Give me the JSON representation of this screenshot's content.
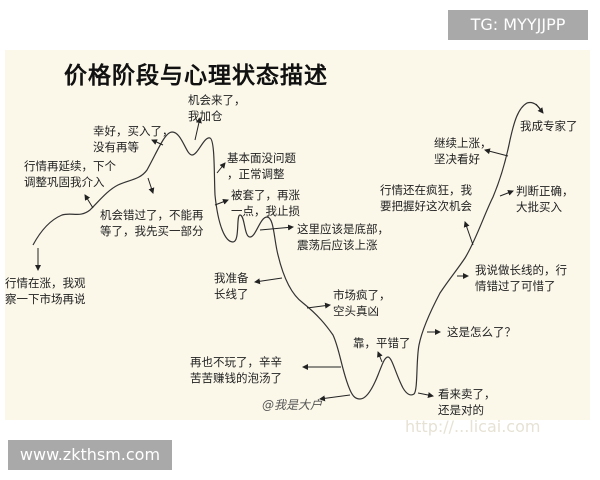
{
  "title": "价格阶段与心理状态描述",
  "badges": {
    "tg": "TG: MYYJJPP",
    "site": "www.zkthsm.com"
  },
  "watermark": "http://...licai.com",
  "watermark_signature": "@我是大户",
  "notes": [
    "行情在涨，我观\n察一下市场再说",
    "行情再延续，下个\n调整巩固我介入",
    "机会错过了，不能再\n等了，我先买一部分",
    "幸好，买入了，\n没有再等",
    "机会来了，\n我加仓",
    "基本面没问题\n，正常调整",
    "被套了，再涨\n一点，我止损",
    "这里应该是底部，\n震荡后应该上涨",
    "我准备\n长线了",
    "市场疯了，\n空头真凶",
    "再也不玩了，辛辛\n苦苦赚钱的泡汤了",
    "靠，平错了",
    "看来卖了，\n还是对的",
    "这是怎么了？",
    "我说做长线的，行\n情错过了可惜了",
    "行情还在疯狂，我\n要把握好这次机会",
    "判断正确，\n大批买入",
    "继续上涨，\n坚决看好",
    "我成专家了"
  ]
}
